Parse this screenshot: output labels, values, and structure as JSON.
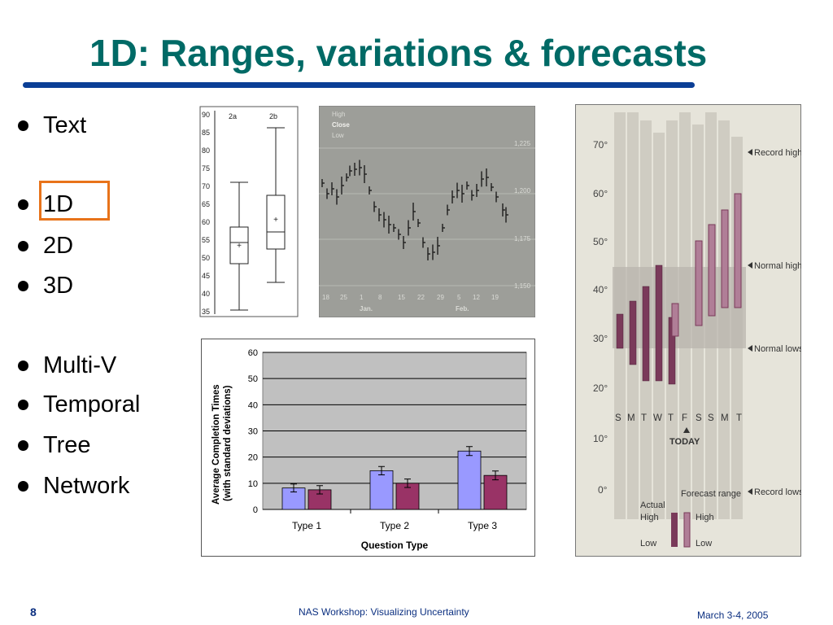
{
  "slide": {
    "title": "1D: Ranges, variations & forecasts",
    "bullets": [
      "Text",
      "1D",
      "2D",
      "3D",
      "Multi-V",
      "Temporal",
      "Tree",
      "Network"
    ],
    "highlighted_bullet": "1D",
    "page_number": "8",
    "footer_center": "NAS Workshop: Visualizing Uncertainty",
    "footer_right": "March 3-4, 2005",
    "colors": {
      "title": "#006a66",
      "rule": "#0b3f96",
      "highlight": "#e8731a"
    }
  },
  "boxplot": {
    "y_ticks": [
      "90",
      "85",
      "80",
      "75",
      "70",
      "65",
      "60",
      "55",
      "50",
      "45",
      "40",
      "35"
    ],
    "labels": [
      "2a",
      "2b"
    ],
    "mean_marker": "+"
  },
  "stock_chart": {
    "legend": [
      "High",
      "Close",
      "Low"
    ],
    "y_ticks": [
      "1,225",
      "1,200",
      "1,175",
      "1,150"
    ],
    "x_ticks": [
      "18",
      "25",
      "1",
      "8",
      "15",
      "22",
      "29",
      "5",
      "12",
      "19"
    ],
    "months": [
      "Jan.",
      "Feb."
    ]
  },
  "chart_data": {
    "type": "bar",
    "categories": [
      "Type 1",
      "Type 2",
      "Type 3"
    ],
    "series": [
      {
        "values": [
          8.2,
          14.8,
          22.3
        ],
        "errors": [
          1.5,
          1.6,
          1.7
        ],
        "color": "#9999ff"
      },
      {
        "values": [
          7.5,
          10.0,
          13.0
        ],
        "errors": [
          1.6,
          1.6,
          1.7
        ],
        "color": "#993366"
      }
    ],
    "xlabel": "Question Type",
    "ylabel": "Average Completion Times (with standard deviations)",
    "ylim": [
      0,
      60
    ],
    "yticks": [
      "0",
      "10",
      "20",
      "30",
      "40",
      "50",
      "60"
    ],
    "grid": true,
    "plot_background": "#c0c0c0"
  },
  "weather": {
    "y_ticks": [
      "70°",
      "60°",
      "50°",
      "40°",
      "30°",
      "20°",
      "10°",
      "0°"
    ],
    "days": [
      "S",
      "M",
      "T",
      "W",
      "T",
      "F",
      "S",
      "S",
      "M",
      "T"
    ],
    "today_label": "TODAY",
    "annotations": {
      "record_highs": "Record highs",
      "normal_highs": "Normal highs",
      "normal_lows": "Normal lows",
      "record_lows": "Record lows"
    },
    "legend_actual": "Actual",
    "legend_forecast": "Forecast range",
    "legend_high": "High",
    "legend_low": "Low"
  }
}
